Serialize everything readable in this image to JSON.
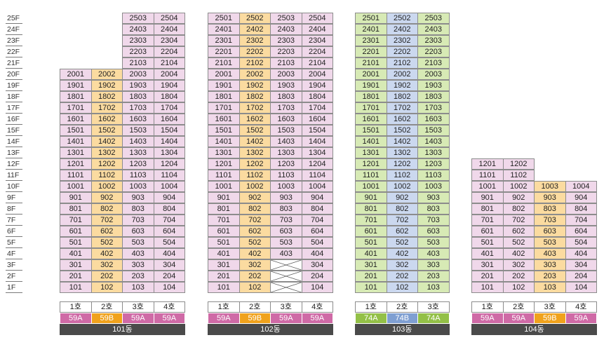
{
  "floor_labels": [
    "25F",
    "24F",
    "23F",
    "22F",
    "21F",
    "20F",
    "19F",
    "18F",
    "17F",
    "16F",
    "15F",
    "14F",
    "13F",
    "12F",
    "11F",
    "10F",
    "9F",
    "8F",
    "7F",
    "6F",
    "5F",
    "4F",
    "3F",
    "2F",
    "1F"
  ],
  "buildings": [
    {
      "name": "101동",
      "columns": [
        {
          "line": "1호",
          "type": "59A",
          "top_floor": 20
        },
        {
          "line": "2호",
          "type": "59B",
          "top_floor": 20
        },
        {
          "line": "3호",
          "type": "59A",
          "top_floor": 25
        },
        {
          "line": "4호",
          "type": "59A",
          "top_floor": 25
        }
      ],
      "blocked_units": []
    },
    {
      "name": "102동",
      "columns": [
        {
          "line": "1호",
          "type": "59A",
          "top_floor": 25
        },
        {
          "line": "2호",
          "type": "59B",
          "top_floor": 25
        },
        {
          "line": "3호",
          "type": "59A",
          "top_floor": 25
        },
        {
          "line": "4호",
          "type": "59A",
          "top_floor": 25
        }
      ],
      "blocked_units": [
        "303",
        "203",
        "103"
      ]
    },
    {
      "name": "103동",
      "columns": [
        {
          "line": "1호",
          "type": "74A",
          "top_floor": 25
        },
        {
          "line": "2호",
          "type": "74B",
          "top_floor": 25
        },
        {
          "line": "3호",
          "type": "74A",
          "top_floor": 25
        }
      ],
      "blocked_units": []
    },
    {
      "name": "104동",
      "columns": [
        {
          "line": "1호",
          "type": "59A",
          "top_floor": 12
        },
        {
          "line": "2호",
          "type": "59A",
          "top_floor": 12
        },
        {
          "line": "3호",
          "type": "59B",
          "top_floor": 10
        },
        {
          "line": "4호",
          "type": "59A",
          "top_floor": 10
        }
      ],
      "blocked_units": []
    }
  ],
  "type_colors": {
    "59A": {
      "cell": "#f0d8ea",
      "tag": "#cf6aa6"
    },
    "59B": {
      "cell": "#fbdba0",
      "tag": "#f0a21c"
    },
    "74A": {
      "cell": "#d7eab5",
      "tag": "#93c047"
    },
    "74B": {
      "cell": "#cbd8ef",
      "tag": "#7f9fd2"
    }
  }
}
